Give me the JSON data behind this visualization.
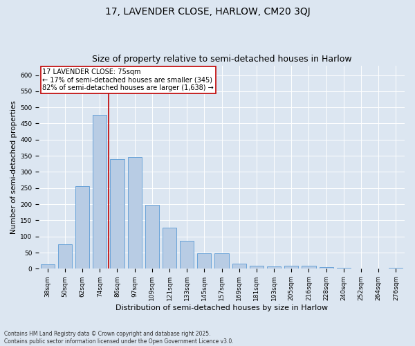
{
  "title1": "17, LAVENDER CLOSE, HARLOW, CM20 3QJ",
  "title2": "Size of property relative to semi-detached houses in Harlow",
  "xlabel": "Distribution of semi-detached houses by size in Harlow",
  "ylabel": "Number of semi-detached properties",
  "categories": [
    "38sqm",
    "50sqm",
    "62sqm",
    "74sqm",
    "86sqm",
    "97sqm",
    "109sqm",
    "121sqm",
    "133sqm",
    "145sqm",
    "157sqm",
    "169sqm",
    "181sqm",
    "193sqm",
    "205sqm",
    "216sqm",
    "228sqm",
    "240sqm",
    "252sqm",
    "264sqm",
    "276sqm"
  ],
  "values": [
    14,
    75,
    255,
    477,
    340,
    345,
    197,
    127,
    87,
    47,
    47,
    15,
    9,
    7,
    9,
    9,
    6,
    2,
    1,
    1,
    2
  ],
  "bar_color": "#b8cce4",
  "bar_edgecolor": "#5b9bd5",
  "vline_x_index": 3,
  "vline_color": "#c00000",
  "annotation_text": "17 LAVENDER CLOSE: 75sqm\n← 17% of semi-detached houses are smaller (345)\n82% of semi-detached houses are larger (1,638) →",
  "annotation_box_edgecolor": "#c00000",
  "ylim": [
    0,
    630
  ],
  "yticks": [
    0,
    50,
    100,
    150,
    200,
    250,
    300,
    350,
    400,
    450,
    500,
    550,
    600
  ],
  "background_color": "#dce6f1",
  "plot_bg_color": "#dce6f1",
  "footer_text": "Contains HM Land Registry data © Crown copyright and database right 2025.\nContains public sector information licensed under the Open Government Licence v3.0.",
  "title1_fontsize": 10,
  "title2_fontsize": 9,
  "xlabel_fontsize": 8,
  "ylabel_fontsize": 7.5,
  "tick_fontsize": 6.5,
  "annotation_fontsize": 7,
  "footer_fontsize": 5.5
}
